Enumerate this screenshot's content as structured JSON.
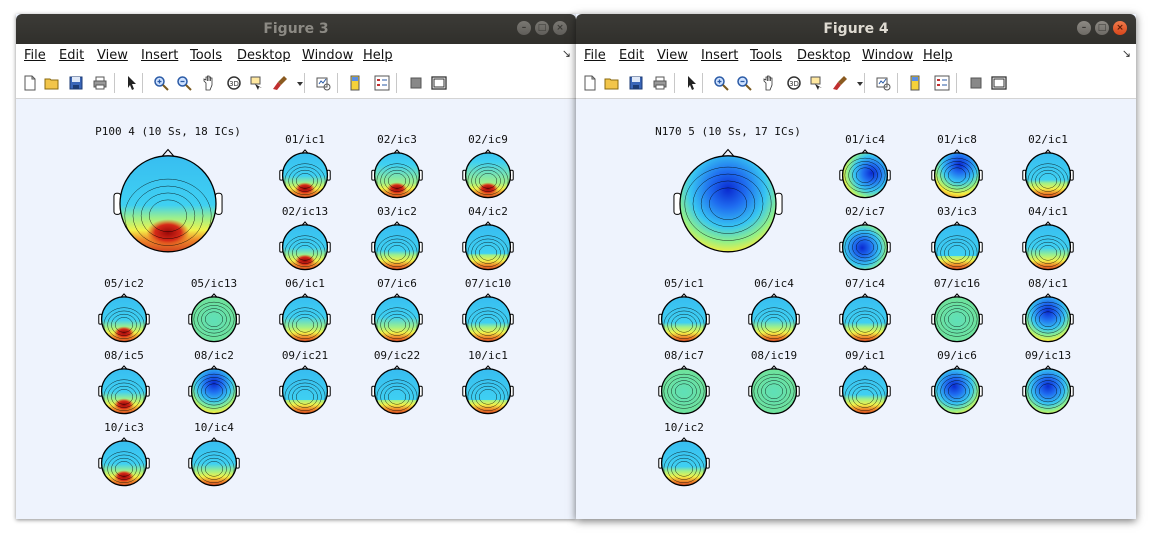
{
  "menu": [
    "File",
    "Edit",
    "View",
    "Insert",
    "Tools",
    "Desktop",
    "Window",
    "Help"
  ],
  "figure3": {
    "title": "Figure 3",
    "main_label": "P100 4 (10 Ss, 18 ICs)",
    "labels": [
      "01/ic1",
      "02/ic3",
      "02/ic9",
      "02/ic13",
      "03/ic2",
      "04/ic2",
      "05/ic2",
      "05/ic13",
      "06/ic1",
      "07/ic6",
      "07/ic10",
      "08/ic5",
      "08/ic2",
      "09/ic21",
      "09/ic22",
      "10/ic1",
      "10/ic3",
      "10/ic4"
    ]
  },
  "figure4": {
    "title": "Figure 4",
    "main_label": "N170 5 (10 Ss, 17 ICs)",
    "labels": [
      "01/ic4",
      "01/ic8",
      "02/ic1",
      "02/ic7",
      "03/ic3",
      "04/ic1",
      "05/ic1",
      "06/ic4",
      "07/ic4",
      "07/ic16",
      "08/ic1",
      "08/ic7",
      "08/ic19",
      "09/ic1",
      "09/ic6",
      "09/ic13",
      "10/ic2"
    ]
  },
  "colors": {
    "canvas_bg": "#eef3fd",
    "titlebar": "#3c3b37",
    "close_button": "#e25e2c"
  },
  "icons": [
    "new-figure-icon",
    "open-icon",
    "save-icon",
    "print-icon",
    "pointer-icon",
    "zoom-in-icon",
    "zoom-out-icon",
    "pan-icon",
    "rotate-icon",
    "data-cursor-icon",
    "brush-icon",
    "brush-dropdown-icon",
    "link-plot-icon",
    "colorbar-icon",
    "legend-icon",
    "hide-plot-tools-icon",
    "show-plot-tools-icon"
  ]
}
